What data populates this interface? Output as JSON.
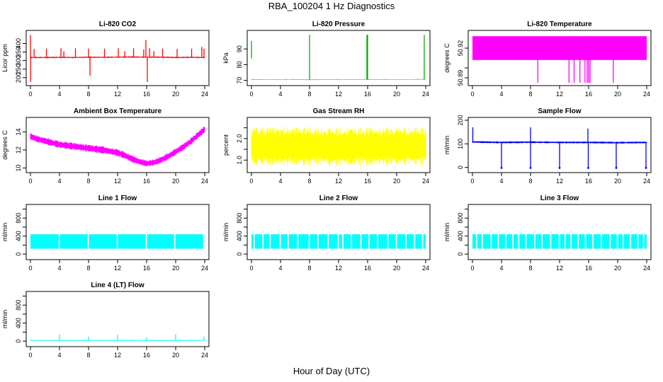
{
  "page": {
    "title": "RBA_100204  1 Hz Diagnostics",
    "xlabel": "Hour of Day (UTC)"
  },
  "chart_data": [
    {
      "type": "line",
      "title": "Li-820 CO2",
      "ylabel": "Licor ppm",
      "color": "#ff0000",
      "xlim": [
        0,
        24
      ],
      "ylim": [
        170,
        460
      ],
      "xticks": [
        0,
        4,
        8,
        12,
        16,
        20,
        24
      ],
      "yticks": [
        200,
        250,
        300,
        350,
        400
      ],
      "series": [
        {
          "base": [
            [
              0,
              318
            ],
            [
              2,
              318
            ],
            [
              4,
              319
            ],
            [
              6,
              318
            ],
            [
              8,
              320
            ],
            [
              10,
              319
            ],
            [
              12,
              320
            ],
            [
              14,
              321
            ],
            [
              16,
              320
            ],
            [
              18,
              320
            ],
            [
              20,
              318
            ],
            [
              22,
              319
            ],
            [
              24,
              318
            ]
          ],
          "band": 8,
          "spikes": [
            [
              0,
              450
            ],
            [
              0.02,
              175
            ],
            [
              0.5,
              368
            ],
            [
              2.2,
              370
            ],
            [
              4.2,
              372
            ],
            [
              4.6,
              355
            ],
            [
              6.2,
              372
            ],
            [
              8.0,
              370
            ],
            [
              8.2,
              212
            ],
            [
              10.2,
              370
            ],
            [
              12.1,
              372
            ],
            [
              13.0,
              355
            ],
            [
              14.2,
              372
            ],
            [
              15.6,
              365
            ],
            [
              15.9,
              420
            ],
            [
              16.1,
              175
            ],
            [
              16.4,
              372
            ],
            [
              17.0,
              355
            ],
            [
              18.2,
              370
            ],
            [
              20.2,
              368
            ],
            [
              22.2,
              370
            ],
            [
              23.6,
              380
            ],
            [
              23.9,
              370
            ]
          ]
        }
      ]
    },
    {
      "type": "line",
      "title": "Li-820 Pressure",
      "ylabel": "kPa",
      "color": "#00b000",
      "xlim": [
        0,
        24
      ],
      "ylim": [
        68.5,
        100
      ],
      "xticks": [
        0,
        4,
        8,
        12,
        16,
        20,
        24
      ],
      "yticks": [
        70,
        80,
        90
      ],
      "series": [
        {
          "base": [
            [
              0,
              70.6
            ],
            [
              4,
              70.5
            ],
            [
              8,
              70.4
            ],
            [
              12,
              70.5
            ],
            [
              16,
              70.5
            ],
            [
              20,
              70.6
            ],
            [
              24,
              70.7
            ]
          ],
          "band": 0.3,
          "segments": [
            [
              0.0,
              84
            ],
            [
              0.0,
              95
            ]
          ],
          "spikes": [
            [
              8.0,
              99
            ],
            [
              15.9,
              99
            ],
            [
              16.0,
              99
            ],
            [
              23.8,
              99
            ]
          ]
        }
      ]
    },
    {
      "type": "line",
      "title": "Li-820 Temperature",
      "ylabel": "degrees C",
      "color": "#ff00ff",
      "xlim": [
        0,
        24
      ],
      "ylim": [
        50.885,
        50.935
      ],
      "xticks": [
        0,
        4,
        8,
        12,
        16,
        20,
        24
      ],
      "yticks": [
        50.89,
        50.92
      ],
      "ytick_labels": [
        "50.89",
        "50.92"
      ],
      "yticks_extra": [
        50.9
      ],
      "series": [
        {
          "band_fill": [
            50.908,
            50.932
          ],
          "drops": [
            [
              9.0,
              50.885
            ],
            [
              13.3,
              50.885
            ],
            [
              14.0,
              50.885
            ],
            [
              14.8,
              50.885
            ],
            [
              15.5,
              50.885
            ],
            [
              15.8,
              50.885
            ],
            [
              16.0,
              50.885
            ],
            [
              16.2,
              50.885
            ],
            [
              19.4,
              50.885
            ]
          ]
        }
      ]
    },
    {
      "type": "line",
      "title": "Ambient Box Temperature",
      "ylabel": "degrees C",
      "color": "#ff00ff",
      "xlim": [
        0,
        24
      ],
      "ylim": [
        9.8,
        15.3
      ],
      "xticks": [
        0,
        4,
        8,
        12,
        16,
        20,
        24
      ],
      "yticks": [
        10,
        12,
        14
      ],
      "series": [
        {
          "base": [
            [
              0,
              13.5
            ],
            [
              1,
              13.2
            ],
            [
              2,
              13.0
            ],
            [
              3,
              12.8
            ],
            [
              4,
              12.6
            ],
            [
              6,
              12.4
            ],
            [
              8,
              12.2
            ],
            [
              10,
              12.0
            ],
            [
              12,
              11.7
            ],
            [
              13,
              11.4
            ],
            [
              14,
              11.0
            ],
            [
              15,
              10.7
            ],
            [
              16,
              10.5
            ],
            [
              17,
              10.6
            ],
            [
              18,
              10.9
            ],
            [
              19,
              11.3
            ],
            [
              20,
              11.8
            ],
            [
              21,
              12.3
            ],
            [
              22,
              12.9
            ],
            [
              23,
              13.6
            ],
            [
              24,
              14.3
            ]
          ],
          "band": 0.8
        }
      ]
    },
    {
      "type": "line",
      "title": "Gas Stream RH",
      "ylabel": "percent",
      "color": "#ffff00",
      "xlim": [
        0,
        24
      ],
      "ylim": [
        0.55,
        2.85
      ],
      "xticks": [
        0,
        4,
        8,
        12,
        16,
        20,
        24
      ],
      "yticks": [
        1.0,
        1.5,
        2.0,
        2.5
      ],
      "ytick_labels": [
        "1.0",
        "",
        "2.0",
        ""
      ],
      "series": [
        {
          "base": [
            [
              0,
              1.65
            ],
            [
              6,
              1.65
            ],
            [
              12,
              1.62
            ],
            [
              18,
              1.64
            ],
            [
              24,
              1.66
            ]
          ],
          "band": 1.8
        }
      ]
    },
    {
      "type": "line",
      "title": "Sample Flow",
      "ylabel": "ml/min",
      "color": "#0000ff",
      "xlim": [
        0,
        24
      ],
      "ylim": [
        -10,
        200
      ],
      "xticks": [
        0,
        4,
        8,
        12,
        16,
        20,
        24
      ],
      "yticks": [
        0,
        100,
        200
      ],
      "series": [
        {
          "base": [
            [
              0,
              108
            ],
            [
              4,
              106
            ],
            [
              8,
              107
            ],
            [
              12,
              106
            ],
            [
              16,
              106
            ],
            [
              20,
              105
            ],
            [
              24,
              106
            ]
          ],
          "band": 8,
          "spikes": [
            [
              0.05,
              170
            ],
            [
              8.0,
              170
            ],
            [
              15.9,
              165
            ]
          ],
          "drops": [
            [
              4.0,
              -2
            ],
            [
              8.0,
              -2
            ],
            [
              12.0,
              -2
            ],
            [
              15.95,
              -2
            ],
            [
              19.8,
              -2
            ],
            [
              23.9,
              -2
            ]
          ]
        }
      ]
    },
    {
      "type": "line",
      "title": "Line 1 Flow",
      "ylabel": "ml/min",
      "color": "#00ffff",
      "xlim": [
        0,
        24
      ],
      "ylim": [
        -60,
        1040
      ],
      "xticks": [
        0,
        4,
        8,
        12,
        16,
        20,
        24
      ],
      "yticks": [
        0,
        200,
        400,
        600,
        800,
        1000
      ],
      "ytick_labels": [
        "0",
        "",
        "400",
        "",
        "800",
        ""
      ],
      "series": [
        {
          "band_fill": [
            120,
            440
          ],
          "gaps": [
            4.0,
            8.0,
            12.0,
            16.0,
            19.9,
            23.9
          ]
        }
      ]
    },
    {
      "type": "line",
      "title": "Line 2 Flow",
      "ylabel": "ml/min",
      "color": "#00ffff",
      "xlim": [
        0,
        24
      ],
      "ylim": [
        -60,
        1040
      ],
      "xticks": [
        0,
        4,
        8,
        12,
        16,
        20,
        24
      ],
      "yticks": [
        0,
        200,
        400,
        600,
        800,
        1000
      ],
      "ytick_labels": [
        "0",
        "",
        "400",
        "",
        "800",
        ""
      ],
      "series": [
        {
          "band_fill": [
            120,
            440
          ],
          "gaps": [
            0.4,
            1.6,
            2.6,
            4.0,
            5.1,
            6.4,
            8.0,
            9.2,
            10.6,
            12.0,
            12.6,
            13.8,
            15.1,
            16.2,
            17.4,
            18.8,
            20.0,
            21.3,
            22.5,
            23.6
          ]
        }
      ]
    },
    {
      "type": "line",
      "title": "Line 3 Flow",
      "ylabel": "ml/min",
      "color": "#00ffff",
      "xlim": [
        0,
        24
      ],
      "ylim": [
        -60,
        1040
      ],
      "xticks": [
        0,
        4,
        8,
        12,
        16,
        20,
        24
      ],
      "yticks": [
        0,
        200,
        400,
        600,
        800,
        1000
      ],
      "ytick_labels": [
        "0",
        "",
        "400",
        "",
        "800",
        ""
      ],
      "series": [
        {
          "band_fill": [
            120,
            440
          ],
          "gaps": [
            0.6,
            1.4,
            2.6,
            3.6,
            4.6,
            5.6,
            6.4,
            7.4,
            8.6,
            9.6,
            10.8,
            12.0,
            12.8,
            13.6,
            14.6,
            15.6,
            16.6,
            17.8,
            19.0,
            20.0,
            20.8,
            21.8,
            22.8,
            23.6
          ]
        }
      ]
    },
    {
      "type": "line",
      "title": "Line 4 (LT) Flow",
      "ylabel": "ml/min",
      "color": "#00ffff",
      "xlim": [
        0,
        24
      ],
      "ylim": [
        -60,
        1040
      ],
      "xticks": [
        0,
        4,
        8,
        12,
        16,
        20,
        24
      ],
      "yticks": [
        0,
        200,
        400,
        600,
        800,
        1000
      ],
      "ytick_labels": [
        "0",
        "",
        "400",
        "",
        "800",
        ""
      ],
      "series": [
        {
          "base": [
            [
              0,
              15
            ],
            [
              8,
              15
            ],
            [
              16,
              12
            ],
            [
              24,
              14
            ]
          ],
          "band": 20,
          "spikes": [
            [
              4.0,
              150
            ],
            [
              8.0,
              100
            ],
            [
              12.0,
              140
            ],
            [
              16.0,
              90
            ],
            [
              20.0,
              150
            ],
            [
              23.9,
              100
            ]
          ]
        }
      ]
    }
  ]
}
